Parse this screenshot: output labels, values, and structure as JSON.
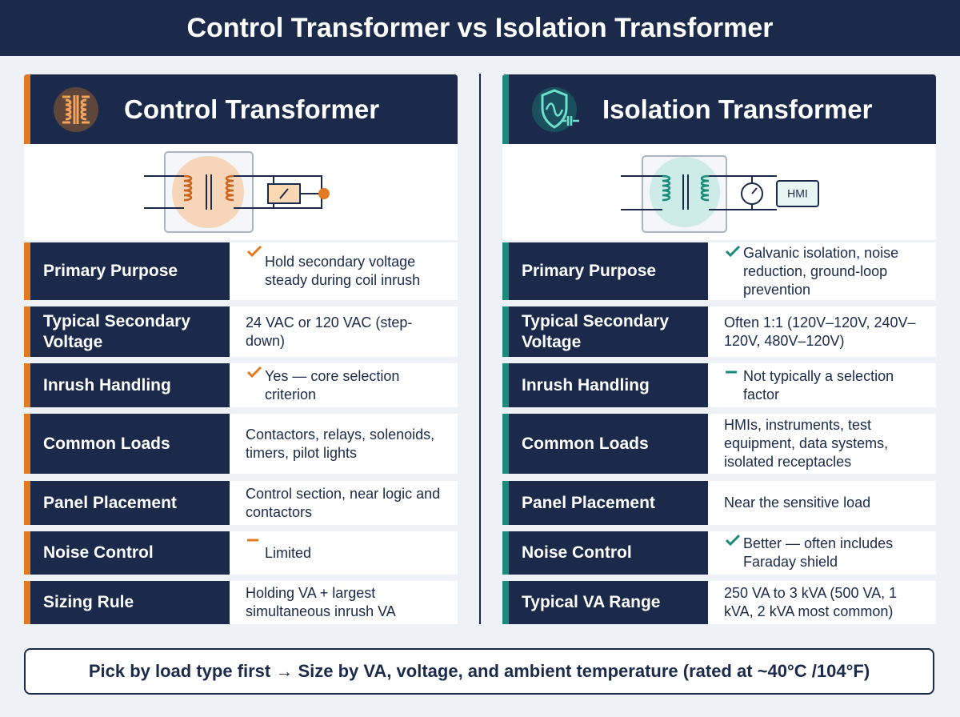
{
  "header": {
    "title": "Control Transformer vs Isolation Transformer"
  },
  "panels": [
    {
      "title": "Control Transformer",
      "rows": [
        {
          "label": "Primary Purpose",
          "value": "Hold secondary voltage steady during coil inrush"
        },
        {
          "label": "Typical Secondary Voltage",
          "value": "24 VAC or 120 VAC (step-down)"
        },
        {
          "label": "Inrush Handling",
          "value": "Yes — core selection criterion"
        },
        {
          "label": "Common Loads",
          "value": "Contactors, relays, solenoids, timers, pilot lights"
        },
        {
          "label": "Panel Placement",
          "value": "Control section, near logic and contactors"
        },
        {
          "label": "Noise Control",
          "value": "Limited"
        },
        {
          "label": "Sizing Rule",
          "value": "Holding VA + largest simultaneous inrush VA"
        }
      ]
    },
    {
      "title": "Isolation Transformer",
      "diagram_label": "HMI",
      "rows": [
        {
          "label": "Primary Purpose",
          "value": "Galvanic isolation, noise reduction, ground-loop prevention"
        },
        {
          "label": "Typical Secondary Voltage",
          "value": "Often 1:1 (120V–120V, 240V–120V, 480V–120V)"
        },
        {
          "label": "Inrush Handling",
          "value": "Not typically a selection factor"
        },
        {
          "label": "Common Loads",
          "value": "HMIs, instruments, test equipment, data systems, isolated receptacles"
        },
        {
          "label": "Panel Placement",
          "value": "Near the sensitive load"
        },
        {
          "label": "Noise Control",
          "value": "Better — often includes Faraday shield"
        },
        {
          "label": "Typical VA Range",
          "value": "250 VA to 3 kVA (500 VA, 1 kVA, 2 kVA most common)"
        }
      ]
    }
  ],
  "footer": {
    "text": "Pick by load type first → Size by VA, voltage, and ambient temperature (rated at ~40°C /104°F)"
  }
}
